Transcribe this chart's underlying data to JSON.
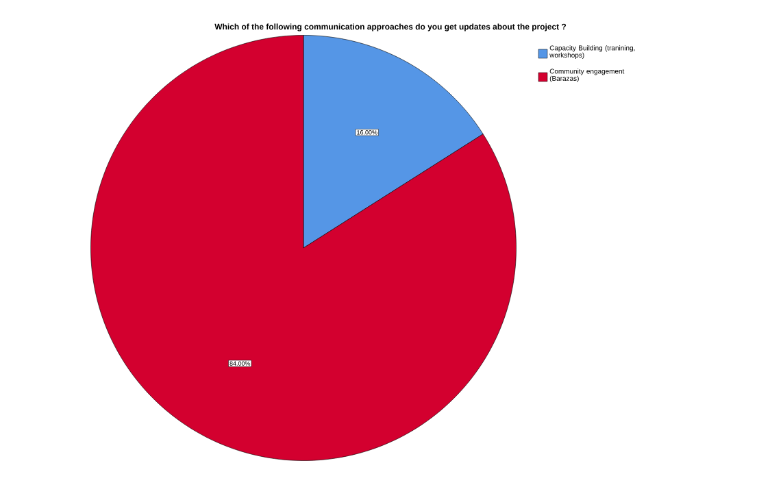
{
  "chart_data": {
    "type": "pie",
    "title": "Which of the following communication approaches do you get updates about the project ?",
    "categories": [
      "Capacity Building (tranining, workshops)",
      "Community engagement (Barazas)"
    ],
    "values": [
      16,
      84
    ],
    "colors": [
      "#5596e6",
      "#d3002f"
    ],
    "value_labels": [
      "16.00%",
      "84.00%"
    ],
    "legend": "top right"
  }
}
